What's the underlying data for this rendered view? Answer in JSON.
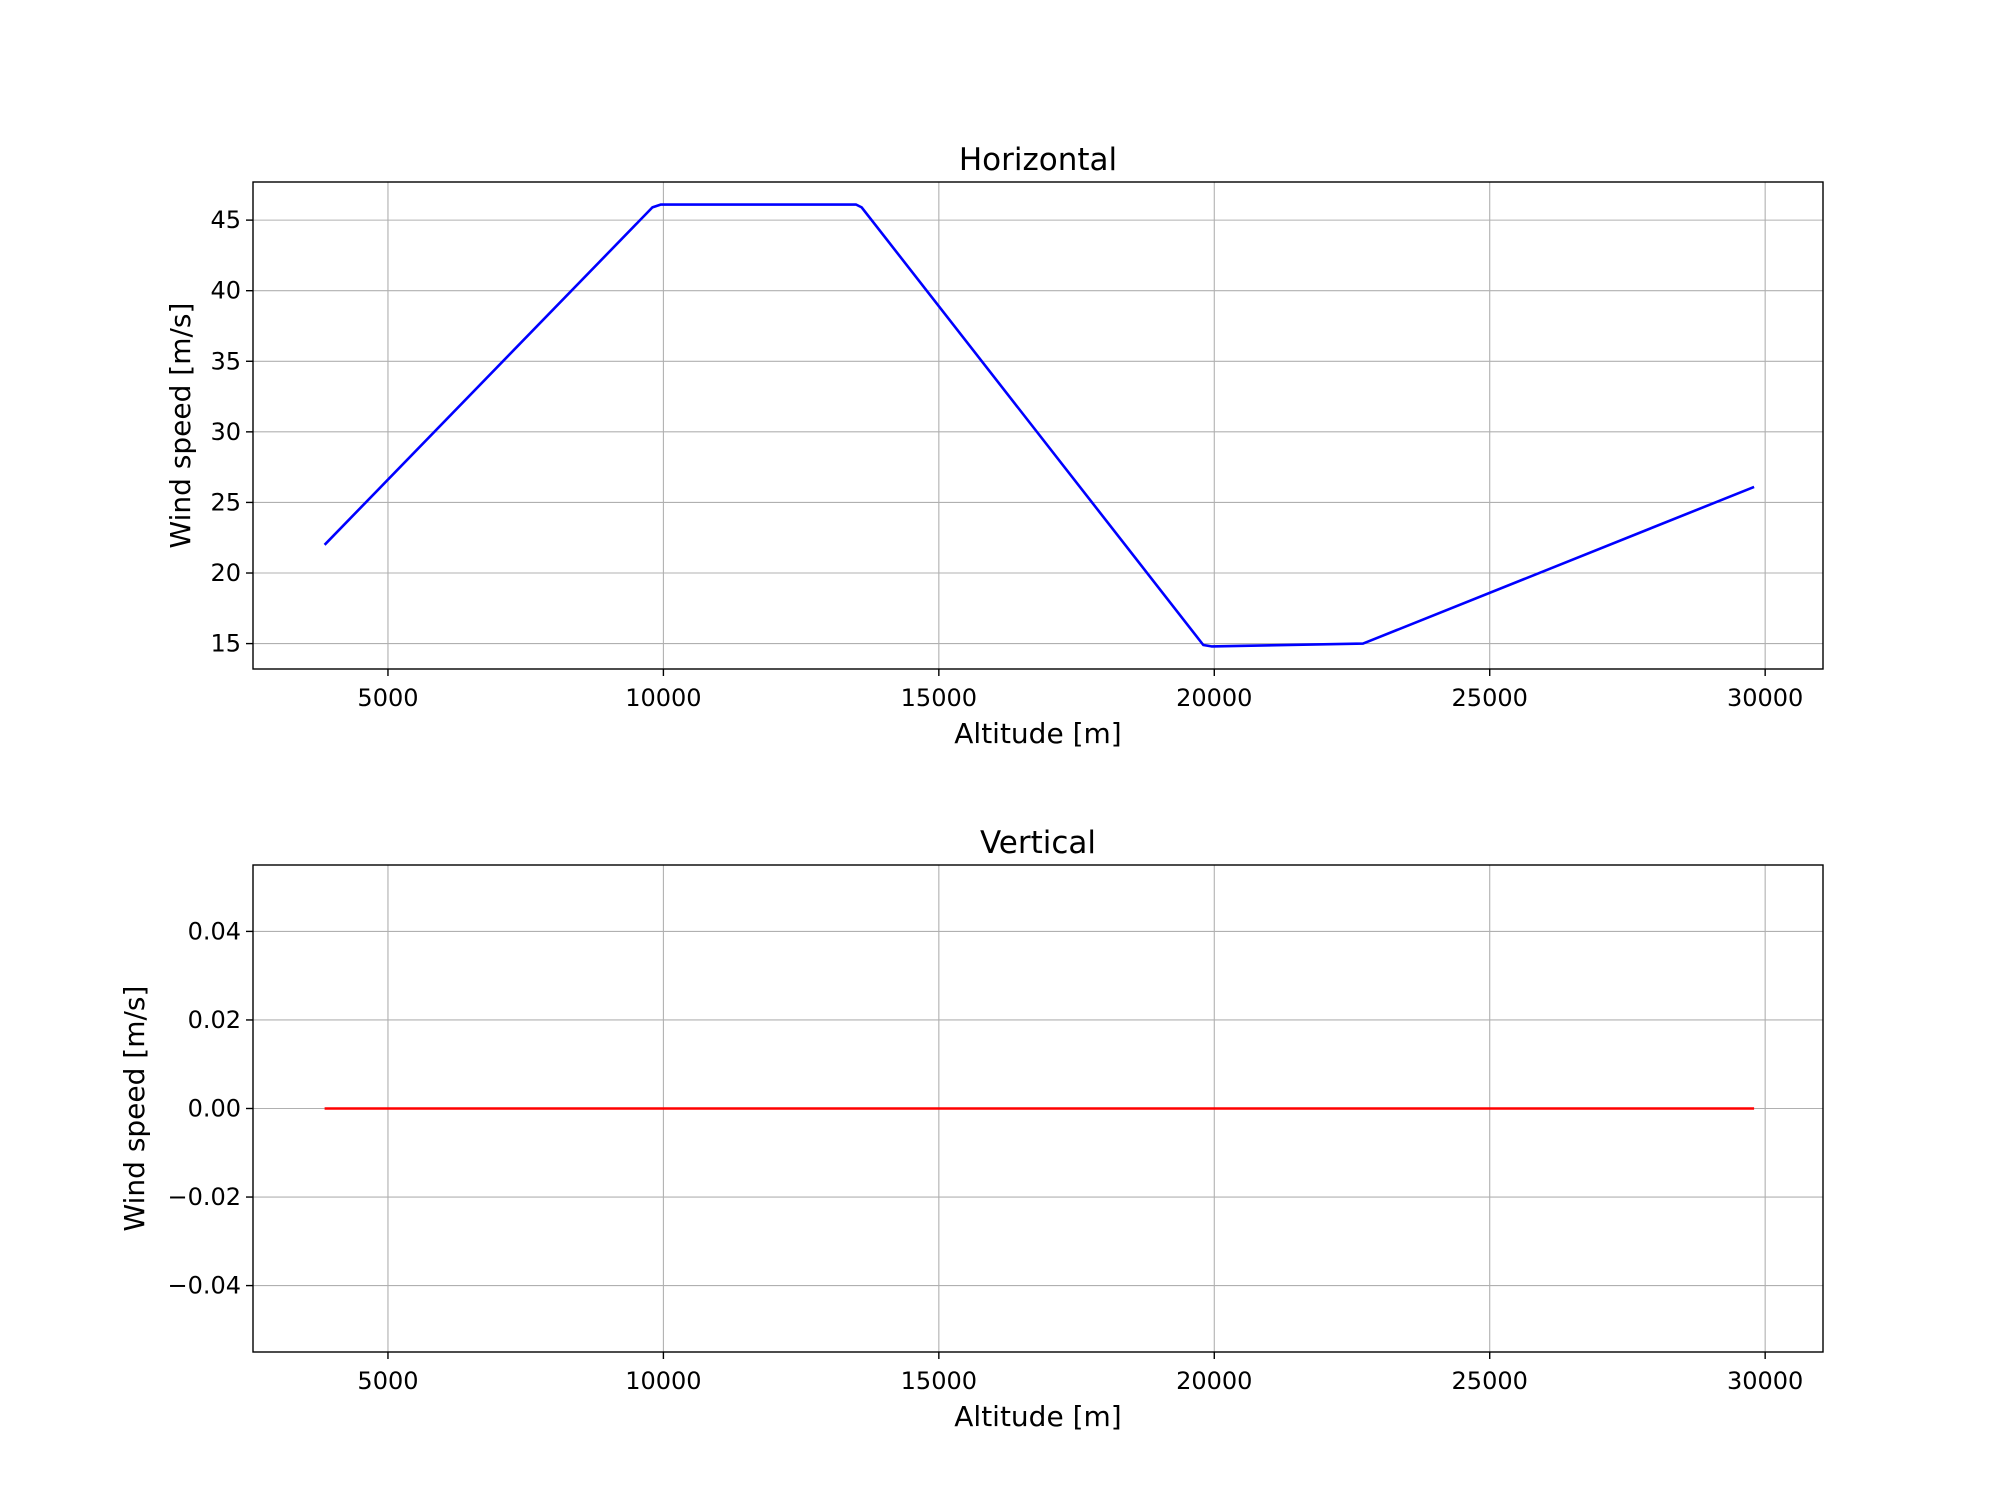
{
  "chart_data": [
    {
      "type": "line",
      "title": "Horizontal",
      "xlabel": "Altitude [m]",
      "ylabel": "Wind speed [m/s]",
      "xlim": [
        2550,
        31050
      ],
      "ylim": [
        13.2,
        47.7
      ],
      "xticks": [
        5000,
        10000,
        15000,
        20000,
        25000,
        30000
      ],
      "xtick_labels": [
        "5000",
        "10000",
        "15000",
        "20000",
        "25000",
        "30000"
      ],
      "yticks": [
        15,
        20,
        25,
        30,
        35,
        40,
        45
      ],
      "ytick_labels": [
        "15",
        "20",
        "25",
        "30",
        "35",
        "40",
        "45"
      ],
      "grid": true,
      "series": [
        {
          "color": "#0000ff",
          "x": [
            3850,
            9800,
            9950,
            13500,
            13600,
            19800,
            19950,
            22700,
            29800
          ],
          "y": [
            22.0,
            45.9,
            46.1,
            46.1,
            45.9,
            14.9,
            14.8,
            15.0,
            26.1
          ]
        }
      ]
    },
    {
      "type": "line",
      "title": "Vertical",
      "xlabel": "Altitude [m]",
      "ylabel": "Wind speed [m/s]",
      "xlim": [
        2550,
        31050
      ],
      "ylim": [
        -0.055,
        0.055
      ],
      "xticks": [
        5000,
        10000,
        15000,
        20000,
        25000,
        30000
      ],
      "xtick_labels": [
        "5000",
        "10000",
        "15000",
        "20000",
        "25000",
        "30000"
      ],
      "yticks": [
        -0.04,
        -0.02,
        0.0,
        0.02,
        0.04
      ],
      "ytick_labels": [
        "−0.04",
        "−0.02",
        "0.00",
        "0.02",
        "0.04"
      ],
      "grid": true,
      "series": [
        {
          "color": "#ff0000",
          "x": [
            3850,
            29800
          ],
          "y": [
            0.0,
            0.0
          ]
        }
      ]
    }
  ]
}
